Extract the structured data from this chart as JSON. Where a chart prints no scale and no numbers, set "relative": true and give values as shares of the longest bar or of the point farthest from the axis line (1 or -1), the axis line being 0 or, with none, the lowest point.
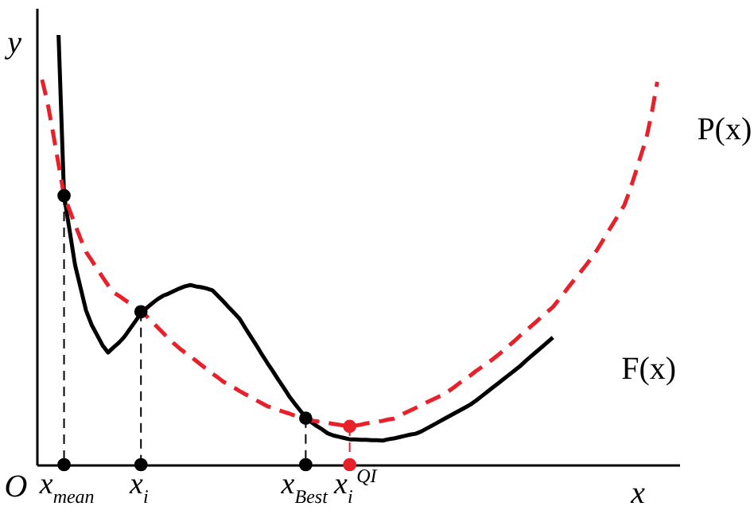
{
  "chart_data": {
    "type": "line",
    "relative": true,
    "xlabel": "x",
    "ylabel": "y",
    "categories": [
      null,
      null,
      null,
      null,
      "x$_{mean}$",
      null,
      null,
      null,
      null,
      null,
      null,
      null,
      null,
      null,
      null,
      null,
      null,
      null,
      "x$_{i}$",
      null,
      null,
      null,
      null,
      null,
      null,
      null,
      null,
      null,
      null,
      null,
      null,
      null,
      null,
      null,
      null,
      null,
      null,
      null,
      null,
      null,
      null,
      null,
      null,
      null,
      null,
      null,
      null,
      null,
      "x$_{Best}$",
      null,
      null,
      null,
      null,
      null,
      null,
      null,
      "x$_{i}$$^{QI}$",
      null,
      null,
      null,
      null,
      null,
      null,
      null,
      null,
      null,
      null,
      null,
      null,
      null,
      null,
      null,
      null,
      null,
      null,
      null,
      null,
      null,
      null,
      null,
      null,
      null,
      null,
      null,
      null,
      null,
      null,
      null,
      null,
      null,
      null,
      null,
      null,
      null,
      null,
      null,
      null,
      null,
      null,
      null,
      null,
      null,
      null,
      null,
      null,
      null,
      null,
      null,
      null,
      null,
      null,
      null,
      null
    ],
    "annotations": [
      "O"
    ],
    "series": [
      {
        "name": "F(x)",
        "color": "#000000",
        "line_style": "solid",
        "values": [
          null,
          null,
          null,
          1.0,
          0.626,
          0.546,
          0.465,
          0.412,
          0.359,
          0.326,
          0.302,
          0.278,
          0.261,
          0.273,
          0.284,
          0.298,
          0.316,
          0.334,
          0.352,
          0.364,
          0.375,
          0.385,
          0.393,
          0.398,
          0.404,
          0.41,
          0.415,
          0.418,
          0.415,
          0.413,
          0.41,
          0.406,
          0.393,
          0.38,
          0.366,
          0.353,
          0.339,
          0.318,
          0.298,
          0.278,
          0.257,
          0.237,
          0.218,
          0.198,
          0.179,
          0.159,
          0.142,
          0.126,
          0.11,
          0.099,
          0.09,
          0.082,
          0.073,
          0.068,
          0.065,
          0.062,
          0.059,
          0.059,
          0.058,
          0.058,
          0.057,
          0.057,
          0.056,
          0.059,
          0.061,
          0.064,
          0.067,
          0.07,
          0.072,
          0.077,
          0.084,
          0.091,
          0.098,
          0.105,
          0.112,
          0.119,
          0.126,
          0.133,
          0.14,
          0.149,
          0.159,
          0.169,
          0.179,
          0.189,
          0.199,
          0.209,
          0.219,
          0.229,
          0.241,
          0.252,
          0.263,
          0.274,
          0.285,
          0.296,
          null,
          null,
          null,
          null,
          null,
          null,
          null,
          null,
          null,
          null,
          null,
          null,
          null,
          null,
          null,
          null,
          null,
          null,
          null
        ]
      },
      {
        "name": "P(x)",
        "color": "#e8202a",
        "line_style": "dashed",
        "values": [
          0.896,
          0.842,
          0.772,
          0.699,
          0.626,
          0.593,
          0.559,
          0.526,
          0.495,
          0.476,
          0.456,
          0.437,
          0.418,
          0.401,
          0.393,
          0.384,
          0.375,
          0.366,
          0.358,
          0.346,
          0.333,
          0.32,
          0.307,
          0.294,
          0.282,
          0.271,
          0.261,
          0.252,
          0.242,
          0.232,
          0.222,
          0.212,
          0.203,
          0.193,
          0.186,
          0.179,
          0.171,
          0.164,
          0.157,
          0.15,
          0.143,
          0.136,
          0.132,
          0.127,
          0.123,
          0.119,
          0.114,
          0.11,
          0.106,
          0.103,
          0.101,
          0.099,
          0.097,
          0.095,
          0.093,
          0.091,
          0.089,
          0.091,
          0.093,
          0.096,
          0.098,
          0.1,
          0.102,
          0.105,
          0.107,
          0.113,
          0.12,
          0.126,
          0.132,
          0.138,
          0.145,
          0.151,
          0.157,
          0.163,
          0.171,
          0.18,
          0.19,
          0.199,
          0.208,
          0.218,
          0.227,
          0.236,
          0.245,
          0.255,
          0.266,
          0.277,
          0.288,
          0.3,
          0.311,
          0.322,
          0.333,
          0.345,
          0.356,
          0.367,
          0.383,
          0.399,
          0.416,
          0.432,
          0.448,
          0.464,
          0.481,
          0.499,
          0.52,
          0.541,
          0.562,
          0.583,
          0.604,
          0.638,
          0.678,
          0.719,
          0.759,
          0.819,
          0.891
        ]
      },
      {
        "type": "scatter",
        "color": "#000000",
        "marker": "circle",
        "x": [
          "x$_{mean}$",
          "x$_{i}$",
          "x$_{Best}$",
          "x$_{mean}$",
          "x$_{i}$",
          "x$_{Best}$"
        ],
        "values": [
          0.626,
          0.356,
          0.108,
          0,
          0,
          0
        ]
      },
      {
        "type": "scatter",
        "color": "#e8202a",
        "marker": "circle",
        "x": [
          "x$_{i}$$^{QI}$",
          "x$_{i}$$^{QI}$"
        ],
        "values": [
          0.089,
          0
        ]
      }
    ]
  }
}
